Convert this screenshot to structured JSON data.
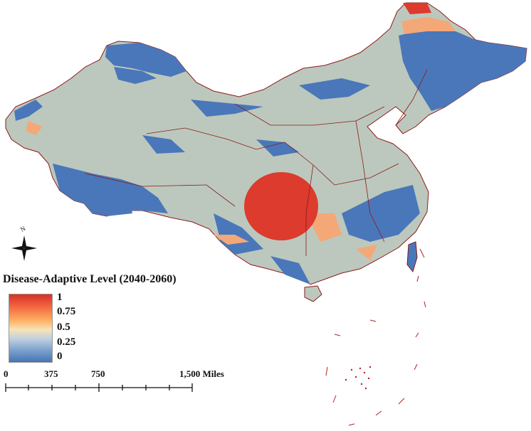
{
  "legend": {
    "title": "Disease-Adaptive Level (2040-2060)",
    "labels": [
      "1",
      "0.75",
      "0.5",
      "0.25",
      "0"
    ],
    "colors": {
      "high": "#d73027",
      "mid_high": "#fdae61",
      "mid": "#f7e4b8",
      "mid_low": "#7ea2cf",
      "low": "#4575b4",
      "land_base": "#bcc8bd",
      "border": "#8b1a1a"
    }
  },
  "scale_bar": {
    "labels": [
      "0",
      "375",
      "750",
      "1,500 Miles"
    ]
  },
  "north_arrow": {
    "label": "N",
    "icon": "compass-rose-icon"
  }
}
